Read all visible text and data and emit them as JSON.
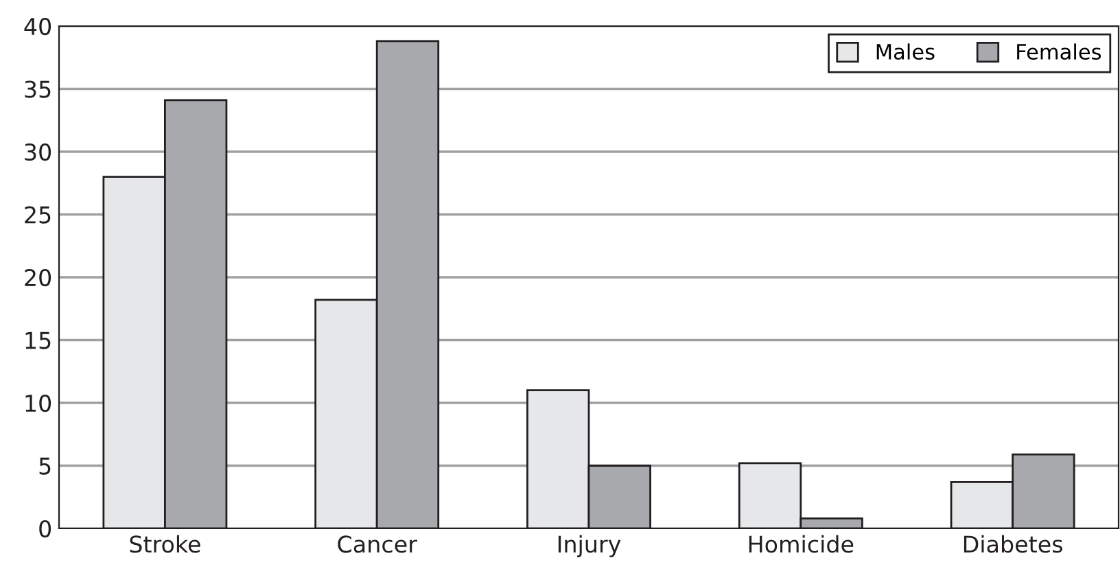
{
  "chart_data": {
    "type": "bar",
    "categories": [
      "Stroke",
      "Cancer",
      "Injury",
      "Homicide",
      "Diabetes"
    ],
    "series": [
      {
        "name": "Males",
        "color": "#e6e7e8",
        "values": [
          28,
          18.2,
          11,
          5.2,
          3.7
        ]
      },
      {
        "name": "Females",
        "color": "#a7a9ac",
        "values": [
          34.1,
          38.8,
          5,
          0.8,
          5.9
        ]
      }
    ],
    "ylim": [
      0,
      40
    ],
    "yticks": [
      0,
      5,
      10,
      15,
      20,
      25,
      30,
      35,
      40
    ],
    "grid": "y",
    "legend": "top right"
  }
}
